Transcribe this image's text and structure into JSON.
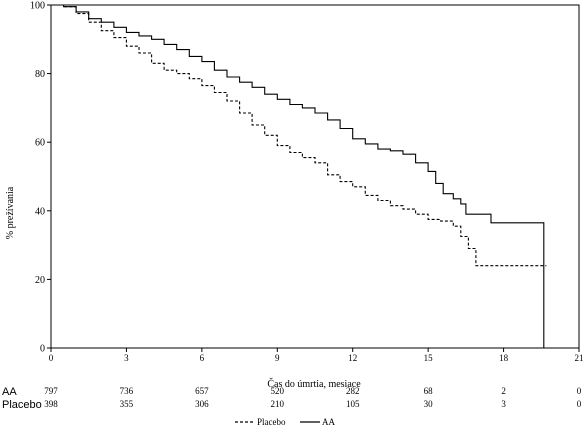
{
  "chart_data": {
    "type": "line",
    "xlabel": "Čas do úmrtia, mesiace",
    "ylabel": "% prežívania",
    "xlim": [
      0,
      21
    ],
    "ylim": [
      0,
      100
    ],
    "xticks": [
      0,
      3,
      6,
      9,
      12,
      15,
      18,
      21
    ],
    "yticks": [
      0,
      20,
      40,
      60,
      80,
      100
    ],
    "grid": false,
    "legend_position": "bottom-center",
    "series": [
      {
        "name": "AA",
        "style": "solid",
        "x": [
          0,
          0.5,
          1,
          1.5,
          2,
          2.5,
          3,
          3.5,
          4,
          4.5,
          5,
          5.5,
          6,
          6.5,
          7,
          7.5,
          8,
          8.5,
          9,
          9.5,
          10,
          10.5,
          11,
          11.5,
          12,
          12.5,
          13,
          13.5,
          14,
          14.5,
          15,
          15.3,
          15.6,
          16,
          16.3,
          16.5,
          17,
          17.5,
          18,
          19,
          19.6,
          19.6
        ],
        "y": [
          100,
          99.5,
          98,
          96,
          95,
          93.5,
          92,
          91,
          90,
          88.5,
          87,
          85,
          83.5,
          81,
          79,
          77.5,
          76,
          74,
          72.5,
          71,
          70,
          68.5,
          66.5,
          64,
          61,
          59.5,
          58,
          57.5,
          56.5,
          54,
          51.5,
          48,
          45,
          43.5,
          42,
          39,
          39,
          36.5,
          36.5,
          36.5,
          36.5,
          0
        ]
      },
      {
        "name": "Placebo",
        "style": "dashed",
        "x": [
          0,
          0.5,
          1,
          1.5,
          2,
          2.5,
          3,
          3.5,
          4,
          4.5,
          5,
          5.5,
          6,
          6.5,
          7,
          7.5,
          8,
          8.5,
          9,
          9.5,
          10,
          10.5,
          11,
          11.5,
          12,
          12.5,
          13,
          13.5,
          14,
          14.5,
          15,
          15.5,
          16,
          16.3,
          16.6,
          16.9,
          17.5,
          18,
          19,
          19.7
        ],
        "y": [
          100,
          99.5,
          97.5,
          95,
          92.5,
          90.5,
          88,
          86,
          83,
          81,
          80,
          78.5,
          76.5,
          74.5,
          72,
          68.5,
          65,
          62,
          59,
          57,
          55.5,
          54,
          50.5,
          48.5,
          47,
          44.5,
          43,
          41.5,
          40.5,
          39,
          37.5,
          37,
          35.5,
          32.5,
          29,
          24,
          24,
          24,
          24,
          24
        ]
      }
    ],
    "at_risk": {
      "x": [
        0,
        3,
        6,
        9,
        12,
        15,
        18,
        21
      ],
      "rows": [
        {
          "label": "AA",
          "values": [
            "797",
            "736",
            "657",
            "520",
            "282",
            "68",
            "2",
            "0"
          ]
        },
        {
          "label": "Placebo",
          "values": [
            "398",
            "355",
            "306",
            "210",
            "105",
            "30",
            "3",
            "0"
          ]
        }
      ]
    },
    "legend": [
      {
        "label": "Placebo",
        "style": "dashed"
      },
      {
        "label": "AA",
        "style": "solid"
      }
    ]
  }
}
